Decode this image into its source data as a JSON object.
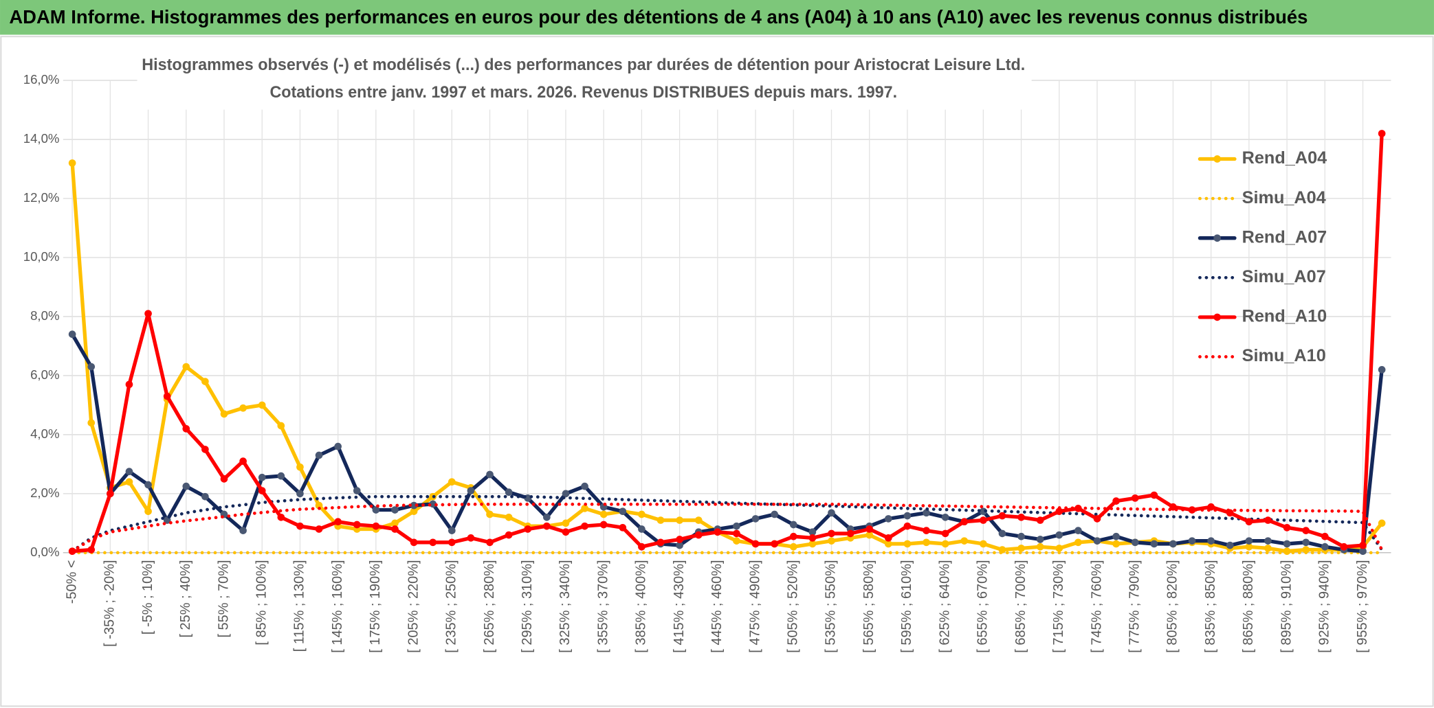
{
  "header": "ADAM Informe. Histogrammes des performances en euros pour des détentions de 4 ans (A04) à 10 ans (A10) avec les revenus connus distribués",
  "chart_data": {
    "type": "line",
    "title": "Histogrammes observés (-) et modélisés (...) des performances par durées de détention pour Aristocrat Leisure Ltd.",
    "subtitle": "Cotations entre janv. 1997 et mars. 2026. Revenus DISTRIBUES depuis mars. 1997.",
    "categories": [
      "-50% <",
      null,
      "[ -35% ; -20%]",
      null,
      "[ -5% ; 10%]",
      null,
      "[ 25% ; 40%]",
      null,
      "[ 55% ; 70%]",
      null,
      "[ 85% ; 100%]",
      null,
      "[ 115% ; 130%]",
      null,
      "[ 145% ; 160%]",
      null,
      "[ 175% ; 190%]",
      null,
      "[ 205% ; 220%]",
      null,
      "[ 235% ; 250%]",
      null,
      "[ 265% ; 280%]",
      null,
      "[ 295% ; 310%]",
      null,
      "[ 325% ; 340%]",
      null,
      "[ 355% ; 370%]",
      null,
      "[ 385% ; 400%]",
      null,
      "[ 415% ; 430%]",
      null,
      "[ 445% ; 460%]",
      null,
      "[ 475% ; 490%]",
      null,
      "[ 505% ; 520%]",
      null,
      "[ 535% ; 550%]",
      null,
      "[ 565% ; 580%]",
      null,
      "[ 595% ; 610%]",
      null,
      "[ 625% ; 640%]",
      null,
      "[ 655% ; 670%]",
      null,
      "[ 685% ; 700%]",
      null,
      "[ 715% ; 730%]",
      null,
      "[ 745% ; 760%]",
      null,
      "[ 775% ; 790%]",
      null,
      "[ 805% ; 820%]",
      null,
      "[ 835% ; 850%]",
      null,
      "[ 865% ; 880%]",
      null,
      "[ 895% ; 910%]",
      null,
      "[ 925% ; 940%]",
      null,
      "[ 955% ; 970%]",
      null
    ],
    "ylim": [
      0,
      16
    ],
    "yticks": [
      {
        "value": 0,
        "label": "0,0%"
      },
      {
        "value": 2,
        "label": "2,0%"
      },
      {
        "value": 4,
        "label": "4,0%"
      },
      {
        "value": 6,
        "label": "6,0%"
      },
      {
        "value": 8,
        "label": "8,0%"
      },
      {
        "value": 10,
        "label": "10,0%"
      },
      {
        "value": 12,
        "label": "12,0%"
      },
      {
        "value": 14,
        "label": "14,0%"
      },
      {
        "value": 16,
        "label": "16,0%"
      }
    ],
    "grid": true,
    "legend": "right",
    "series": [
      {
        "name": "Rend_A04",
        "color": "#FFC000",
        "line_style": "solid",
        "markers": true,
        "values": [
          13.2,
          4.4,
          2.2,
          2.4,
          1.4,
          5.2,
          6.3,
          5.8,
          4.7,
          4.9,
          5.0,
          4.3,
          2.9,
          1.6,
          0.9,
          0.8,
          0.8,
          1.0,
          1.4,
          1.9,
          2.4,
          2.2,
          1.3,
          1.2,
          0.9,
          0.9,
          1.0,
          1.5,
          1.3,
          1.4,
          1.3,
          1.1,
          1.1,
          1.1,
          0.7,
          0.4,
          0.3,
          0.3,
          0.2,
          0.3,
          0.4,
          0.5,
          0.6,
          0.3,
          0.3,
          0.35,
          0.3,
          0.4,
          0.3,
          0.1,
          0.15,
          0.2,
          0.15,
          0.35,
          0.4,
          0.3,
          0.35,
          0.4,
          0.3,
          0.35,
          0.3,
          0.15,
          0.2,
          0.15,
          0.05,
          0.1,
          0.1,
          0.1,
          0.2,
          1.0
        ]
      },
      {
        "name": "Simu_A04",
        "color": "#FFC000",
        "line_style": "dotted",
        "markers": false,
        "values": [
          0,
          0,
          0,
          0,
          0,
          0,
          0,
          0,
          0,
          0,
          0,
          0,
          0,
          0,
          0,
          0,
          0,
          0,
          0,
          0,
          0,
          0,
          0,
          0,
          0,
          0,
          0,
          0,
          0,
          0,
          0,
          0,
          0,
          0,
          0,
          0,
          0,
          0,
          0,
          0,
          0,
          0,
          0,
          0,
          0,
          0,
          0,
          0,
          0,
          0,
          0,
          0,
          0,
          0,
          0,
          0,
          0,
          0,
          0,
          0,
          0,
          0,
          0,
          0,
          0,
          0,
          0,
          0,
          0,
          0
        ]
      },
      {
        "name": "Rend_A07",
        "color": "#14285A",
        "line_style": "solid",
        "markers": true,
        "marker_color": "#4A5873",
        "values": [
          7.4,
          6.3,
          2.0,
          2.75,
          2.3,
          1.1,
          2.25,
          1.9,
          1.3,
          0.75,
          2.55,
          2.6,
          2.0,
          3.3,
          3.6,
          2.1,
          1.45,
          1.45,
          1.6,
          1.65,
          0.75,
          2.1,
          2.65,
          2.05,
          1.85,
          1.2,
          2.0,
          2.25,
          1.55,
          1.4,
          0.8,
          0.3,
          0.25,
          0.7,
          0.8,
          0.9,
          1.15,
          1.3,
          0.95,
          0.7,
          1.35,
          0.8,
          0.9,
          1.15,
          1.25,
          1.35,
          1.2,
          1.05,
          1.4,
          0.65,
          0.55,
          0.45,
          0.6,
          0.75,
          0.4,
          0.55,
          0.35,
          0.3,
          0.3,
          0.4,
          0.4,
          0.25,
          0.4,
          0.4,
          0.3,
          0.35,
          0.2,
          0.1,
          0.05,
          6.2
        ]
      },
      {
        "name": "Simu_A07",
        "color": "#14285A",
        "line_style": "dotted",
        "markers": false,
        "values": [
          0.05,
          0.5,
          0.75,
          0.9,
          1.05,
          1.2,
          1.35,
          1.45,
          1.55,
          1.62,
          1.7,
          1.75,
          1.8,
          1.83,
          1.86,
          1.88,
          1.9,
          1.9,
          1.9,
          1.9,
          1.9,
          1.9,
          1.9,
          1.9,
          1.9,
          1.88,
          1.86,
          1.84,
          1.82,
          1.8,
          1.78,
          1.76,
          1.74,
          1.72,
          1.7,
          1.68,
          1.66,
          1.64,
          1.62,
          1.6,
          1.58,
          1.56,
          1.54,
          1.52,
          1.5,
          1.48,
          1.46,
          1.44,
          1.42,
          1.4,
          1.38,
          1.36,
          1.34,
          1.32,
          1.3,
          1.28,
          1.26,
          1.24,
          1.22,
          1.2,
          1.18,
          1.16,
          1.14,
          1.12,
          1.1,
          1.08,
          1.06,
          1.04,
          1.02,
          0.1
        ]
      },
      {
        "name": "Rend_A10",
        "color": "#FF0000",
        "line_style": "solid",
        "markers": true,
        "values": [
          0.05,
          0.1,
          2.0,
          5.7,
          8.1,
          5.3,
          4.2,
          3.5,
          2.5,
          3.1,
          2.1,
          1.2,
          0.9,
          0.8,
          1.05,
          0.95,
          0.9,
          0.8,
          0.35,
          0.35,
          0.35,
          0.5,
          0.35,
          0.6,
          0.8,
          0.9,
          0.7,
          0.9,
          0.95,
          0.85,
          0.2,
          0.35,
          0.45,
          0.6,
          0.7,
          0.65,
          0.3,
          0.3,
          0.55,
          0.5,
          0.65,
          0.65,
          0.8,
          0.5,
          0.9,
          0.75,
          0.65,
          1.05,
          1.1,
          1.25,
          1.2,
          1.1,
          1.4,
          1.5,
          1.15,
          1.75,
          1.85,
          1.95,
          1.55,
          1.45,
          1.55,
          1.35,
          1.05,
          1.1,
          0.85,
          0.75,
          0.55,
          0.2,
          0.25,
          14.2
        ]
      },
      {
        "name": "Simu_A10",
        "color": "#FF0000",
        "line_style": "dotted",
        "markers": false,
        "values": [
          0.05,
          0.45,
          0.7,
          0.8,
          0.9,
          1.0,
          1.08,
          1.15,
          1.22,
          1.3,
          1.36,
          1.42,
          1.47,
          1.5,
          1.53,
          1.56,
          1.58,
          1.6,
          1.61,
          1.62,
          1.63,
          1.64,
          1.64,
          1.64,
          1.64,
          1.64,
          1.64,
          1.64,
          1.64,
          1.64,
          1.64,
          1.64,
          1.64,
          1.64,
          1.64,
          1.64,
          1.64,
          1.64,
          1.64,
          1.64,
          1.64,
          1.63,
          1.62,
          1.61,
          1.6,
          1.59,
          1.58,
          1.57,
          1.56,
          1.55,
          1.54,
          1.53,
          1.52,
          1.51,
          1.5,
          1.49,
          1.48,
          1.47,
          1.46,
          1.45,
          1.44,
          1.44,
          1.43,
          1.43,
          1.42,
          1.42,
          1.41,
          1.41,
          1.4,
          0.1
        ]
      }
    ]
  }
}
